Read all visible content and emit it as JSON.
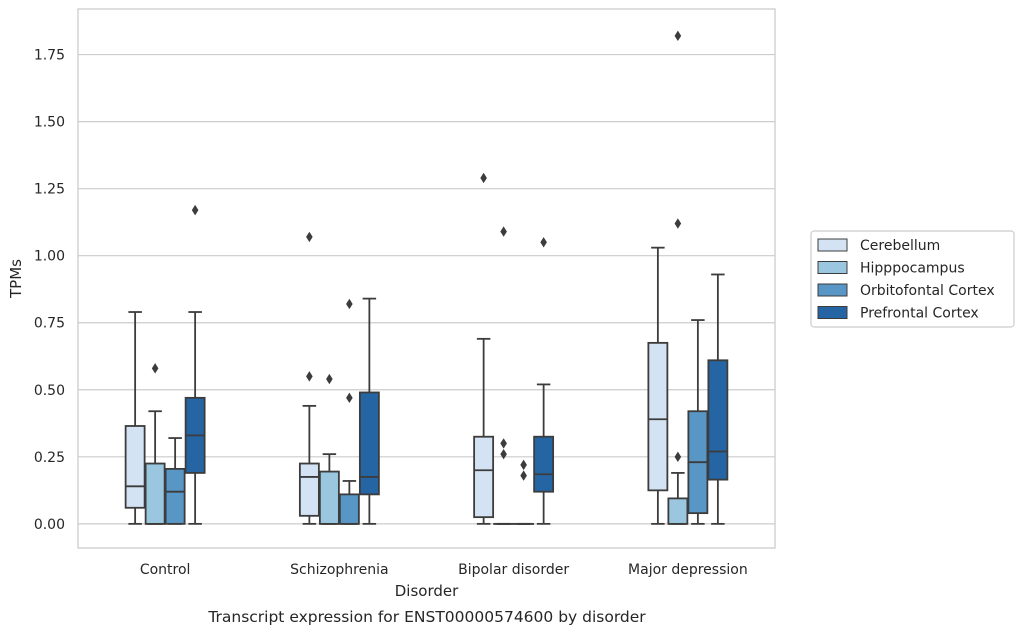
{
  "chart_data": {
    "type": "box",
    "caption": "Transcript expression for ENST00000574600 by disorder",
    "xlabel": "Disorder",
    "ylabel": "TPMs",
    "ylim": [
      -0.09,
      1.92
    ],
    "yticks": [
      0.0,
      0.25,
      0.5,
      0.75,
      1.0,
      1.25,
      1.5,
      1.75
    ],
    "ytick_labels": [
      "0.00",
      "0.25",
      "0.50",
      "0.75",
      "1.00",
      "1.25",
      "1.50",
      "1.75"
    ],
    "grid": true,
    "legend_position": "right, outside plot",
    "categories": [
      "Control",
      "Schizophrenia",
      "Bipolar disorder",
      "Major depression"
    ],
    "series": [
      {
        "name": "Cerebellum",
        "color": "#d3e3f3",
        "boxes": [
          {
            "whislo": 0.0,
            "q1": 0.06,
            "med": 0.14,
            "q3": 0.365,
            "whishi": 0.79,
            "fliers": []
          },
          {
            "whislo": 0.0,
            "q1": 0.03,
            "med": 0.175,
            "q3": 0.225,
            "whishi": 0.44,
            "fliers": [
              0.55,
              1.07
            ]
          },
          {
            "whislo": 0.0,
            "q1": 0.025,
            "med": 0.2,
            "q3": 0.325,
            "whishi": 0.69,
            "fliers": [
              1.29
            ]
          },
          {
            "whislo": 0.0,
            "q1": 0.125,
            "med": 0.39,
            "q3": 0.675,
            "whishi": 1.03,
            "fliers": []
          }
        ]
      },
      {
        "name": "Hipppocampus",
        "color": "#9ac7df",
        "boxes": [
          {
            "whislo": 0.0,
            "q1": 0.0,
            "med": 0.0,
            "q3": 0.225,
            "whishi": 0.42,
            "fliers": [
              0.58
            ]
          },
          {
            "whislo": 0.0,
            "q1": 0.0,
            "med": 0.0,
            "q3": 0.195,
            "whishi": 0.26,
            "fliers": [
              0.54
            ]
          },
          {
            "whislo": 0.0,
            "q1": 0.0,
            "med": 0.0,
            "q3": 0.0,
            "whishi": 0.0,
            "fliers": [
              0.26,
              0.3,
              1.09
            ]
          },
          {
            "whislo": 0.0,
            "q1": 0.0,
            "med": 0.0,
            "q3": 0.095,
            "whishi": 0.19,
            "fliers": [
              0.25,
              1.12,
              1.82
            ]
          }
        ]
      },
      {
        "name": "Orbitofontal Cortex",
        "color": "#5796c5",
        "boxes": [
          {
            "whislo": 0.0,
            "q1": 0.0,
            "med": 0.12,
            "q3": 0.205,
            "whishi": 0.32,
            "fliers": []
          },
          {
            "whislo": 0.0,
            "q1": 0.0,
            "med": 0.0,
            "q3": 0.11,
            "whishi": 0.16,
            "fliers": [
              0.47,
              0.82
            ]
          },
          {
            "whislo": 0.0,
            "q1": 0.0,
            "med": 0.0,
            "q3": 0.0,
            "whishi": 0.0,
            "fliers": [
              0.18,
              0.22
            ]
          },
          {
            "whislo": 0.0,
            "q1": 0.04,
            "med": 0.23,
            "q3": 0.42,
            "whishi": 0.76,
            "fliers": []
          }
        ]
      },
      {
        "name": "Prefrontal Cortex",
        "color": "#2565a4",
        "boxes": [
          {
            "whislo": 0.0,
            "q1": 0.19,
            "med": 0.33,
            "q3": 0.47,
            "whishi": 0.79,
            "fliers": [
              1.17
            ]
          },
          {
            "whislo": 0.0,
            "q1": 0.11,
            "med": 0.175,
            "q3": 0.49,
            "whishi": 0.84,
            "fliers": []
          },
          {
            "whislo": 0.0,
            "q1": 0.12,
            "med": 0.185,
            "q3": 0.325,
            "whishi": 0.52,
            "fliers": [
              1.05
            ]
          },
          {
            "whislo": 0.0,
            "q1": 0.165,
            "med": 0.27,
            "q3": 0.61,
            "whishi": 0.93,
            "fliers": []
          }
        ]
      }
    ]
  }
}
